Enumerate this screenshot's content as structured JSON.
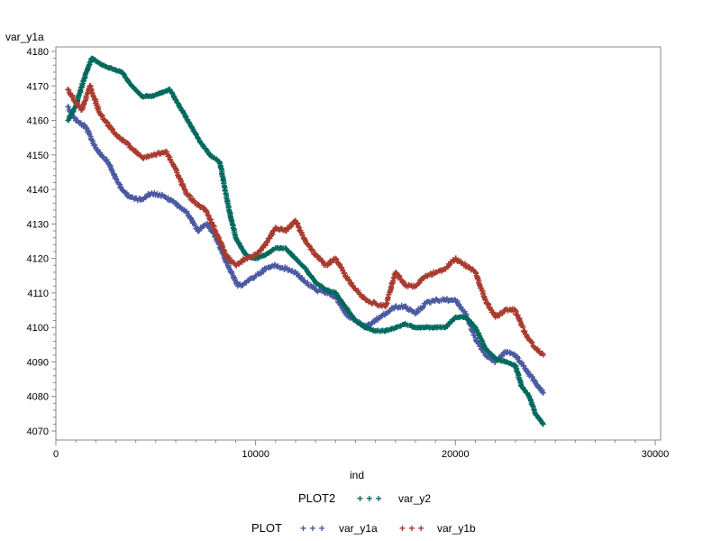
{
  "chart_data": {
    "type": "scatter",
    "title": "",
    "xlabel": "ind",
    "ylabel": "var_y1a",
    "xlim": [
      0,
      30000
    ],
    "ylim": [
      4070,
      4180
    ],
    "x_ticks": [
      0,
      10000,
      20000,
      30000
    ],
    "x_tick_labels": [
      "0",
      "10000",
      "20000",
      "30000"
    ],
    "y_ticks": [
      4070,
      4080,
      4090,
      4100,
      4110,
      4120,
      4130,
      4140,
      4150,
      4160,
      4170,
      4180
    ],
    "y_tick_labels": [
      "4070",
      "4080",
      "4090",
      "4100",
      "4110",
      "4120",
      "4130",
      "4140",
      "4150",
      "4160",
      "4170",
      "4180"
    ],
    "grid": false,
    "legends": [
      {
        "title": "PLOT2",
        "entries": [
          {
            "name": "var_y2",
            "marker": "+ + +",
            "color": "#00695c"
          }
        ]
      },
      {
        "title": "PLOT",
        "entries": [
          {
            "name": "var_y1a",
            "marker": "+ + +",
            "color": "#4a5aa0"
          },
          {
            "name": "var_y1b",
            "marker": "+ + +",
            "color": "#a83a2e"
          }
        ]
      }
    ],
    "series": [
      {
        "name": "var_y1a",
        "color": "#4a5aa0",
        "marker": "+",
        "x": [
          600,
          1000,
          1500,
          2000,
          2600,
          3100,
          3600,
          4200,
          4800,
          5400,
          6000,
          6600,
          7100,
          7600,
          8100,
          8600,
          9100,
          9500,
          10000,
          10500,
          11000,
          11500,
          12000,
          12500,
          13000,
          13500,
          14000,
          14500,
          15000,
          15500,
          16000,
          16500,
          17000,
          17500,
          18000,
          18500,
          19000,
          19500,
          20000,
          20500,
          21000,
          21500,
          22000,
          22500,
          23000,
          23500,
          24000,
          24400
        ],
        "y": [
          4164,
          4160,
          4158,
          4152,
          4148,
          4142,
          4138,
          4137,
          4139,
          4138,
          4136,
          4133,
          4128,
          4130,
          4125,
          4118,
          4112,
          4113,
          4115,
          4117,
          4118,
          4117,
          4116,
          4113,
          4111,
          4110,
          4109,
          4104,
          4102,
          4100,
          4102,
          4104,
          4106,
          4106,
          4104,
          4107,
          4108,
          4108,
          4108,
          4104,
          4097,
          4092,
          4090,
          4093,
          4092,
          4088,
          4084,
          4081
        ]
      },
      {
        "name": "var_y1b",
        "color": "#a83a2e",
        "marker": "+",
        "x": [
          600,
          900,
          1300,
          1700,
          2200,
          2700,
          3200,
          3800,
          4400,
          5000,
          5500,
          6000,
          6500,
          7000,
          7500,
          8000,
          8500,
          9000,
          9500,
          10000,
          10500,
          11000,
          11500,
          12000,
          12500,
          13000,
          13500,
          14000,
          14500,
          15000,
          15500,
          16000,
          16500,
          17000,
          17500,
          18000,
          18500,
          19000,
          19500,
          20000,
          20500,
          21000,
          21500,
          22000,
          22500,
          23000,
          23500,
          24000,
          24400
        ],
        "y": [
          4169,
          4166,
          4163,
          4170,
          4162,
          4158,
          4155,
          4152,
          4149,
          4150,
          4151,
          4146,
          4139,
          4136,
          4134,
          4128,
          4121,
          4118,
          4120,
          4121,
          4124,
          4129,
          4128,
          4131,
          4125,
          4121,
          4118,
          4120,
          4115,
          4111,
          4108,
          4107,
          4106,
          4116,
          4112,
          4112,
          4115,
          4116,
          4117,
          4120,
          4118,
          4116,
          4108,
          4103,
          4105,
          4105,
          4098,
          4094,
          4092
        ]
      },
      {
        "name": "var_y2",
        "color": "#00695c",
        "marker": "+",
        "x": [
          600,
          1000,
          1400,
          1800,
          2300,
          2800,
          3300,
          3800,
          4300,
          4800,
          5300,
          5700,
          6200,
          6700,
          7200,
          7700,
          8200,
          8600,
          9000,
          9500,
          10000,
          10500,
          11000,
          11500,
          12000,
          12500,
          13000,
          13500,
          14000,
          14500,
          15000,
          15500,
          16000,
          16500,
          17000,
          17500,
          18000,
          18500,
          19000,
          19500,
          20000,
          20500,
          21000,
          21500,
          22000,
          22500,
          23000,
          23300,
          23700,
          24000,
          24400
        ],
        "y": [
          4160,
          4164,
          4172,
          4178,
          4176,
          4175,
          4174,
          4170,
          4167,
          4167,
          4168,
          4169,
          4164,
          4159,
          4154,
          4150,
          4148,
          4136,
          4126,
          4121,
          4120,
          4121,
          4123,
          4123,
          4120,
          4117,
          4113,
          4111,
          4110,
          4106,
          4102,
          4100,
          4099,
          4099,
          4100,
          4101,
          4100,
          4100,
          4100,
          4100,
          4103,
          4103,
          4100,
          4094,
          4091,
          4090,
          4089,
          4083,
          4080,
          4075,
          4072
        ]
      }
    ]
  }
}
